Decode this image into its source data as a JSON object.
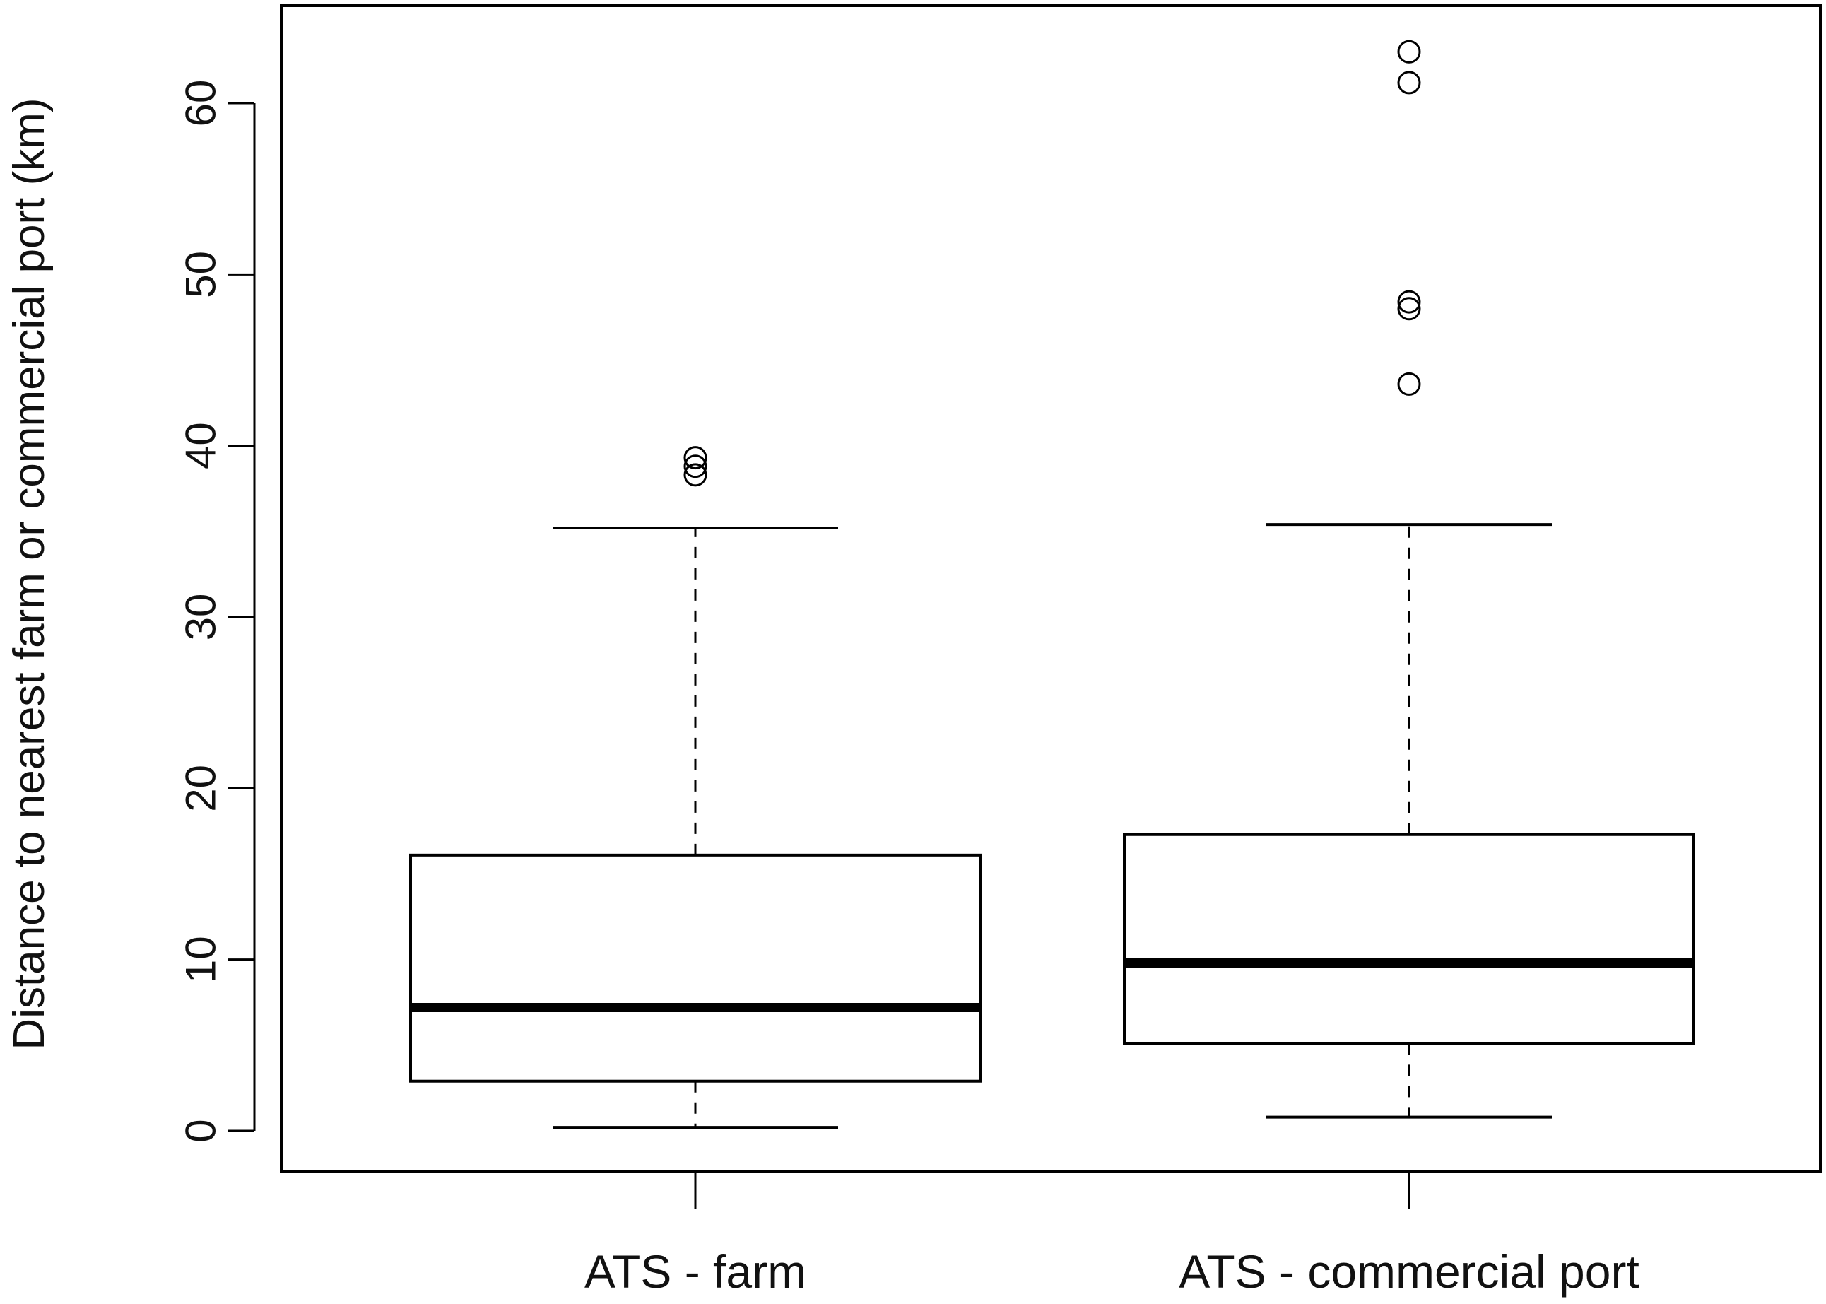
{
  "chart_data": {
    "type": "boxplot",
    "title": "",
    "xlabel": "",
    "ylabel": "Distance to nearest farm or commercial port (km)",
    "ylim": [
      -2.5,
      65.5
    ],
    "yticks": [
      0,
      10,
      20,
      30,
      40,
      50,
      60
    ],
    "grid": false,
    "legend": "none",
    "categories": [
      "ATS - farm",
      "ATS - commercial port"
    ],
    "boxes": [
      {
        "category": "ATS - farm",
        "whisker_low": 0.2,
        "q1": 2.9,
        "median": 7.2,
        "q3": 16.1,
        "whisker_high": 35.2,
        "outliers": [
          38.3,
          38.8,
          39.3
        ]
      },
      {
        "category": "ATS - commercial port",
        "whisker_low": 0.8,
        "q1": 5.1,
        "median": 9.8,
        "q3": 17.3,
        "whisker_high": 35.4,
        "outliers": [
          43.6,
          48.0,
          48.4,
          61.2,
          63.0
        ]
      }
    ]
  }
}
